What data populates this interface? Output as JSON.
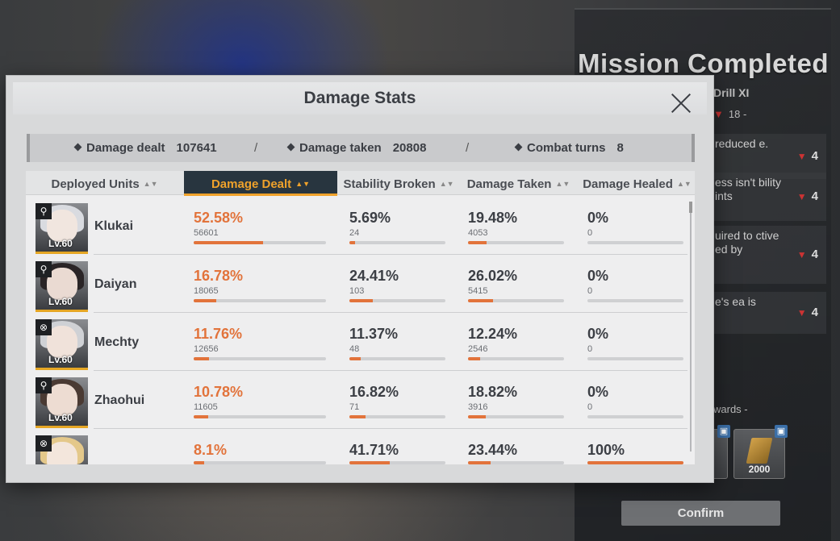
{
  "background": {
    "mission_title": "Mission Completed",
    "mission_subtitle": "Drill XI",
    "difficulty": "18 -",
    "objectives": [
      {
        "text": "reduced e.",
        "stars": "4"
      },
      {
        "text": "ess isn't bility ints",
        "stars": "4"
      },
      {
        "text": "uired to ctive ed by",
        "stars": "4"
      },
      {
        "text": "e's ea is",
        "stars": "4"
      }
    ],
    "rewards_label": "wards -",
    "rewards": [
      {
        "amount": ""
      },
      {
        "amount": "2000"
      }
    ],
    "confirm_label": "Confirm"
  },
  "modal": {
    "title": "Damage Stats",
    "summary": {
      "damage_dealt_label": "Damage dealt",
      "damage_dealt_value": "107641",
      "damage_taken_label": "Damage taken",
      "damage_taken_value": "20808",
      "combat_turns_label": "Combat turns",
      "combat_turns_value": "8",
      "separator": "/"
    },
    "columns": [
      {
        "label": "Deployed Units",
        "active": false
      },
      {
        "label": "Damage Dealt",
        "active": true
      },
      {
        "label": "Stability Broken",
        "active": false
      },
      {
        "label": "Damage Taken",
        "active": false
      },
      {
        "label": "Damage Healed",
        "active": false
      }
    ],
    "level_label": "Lv.60",
    "units": [
      {
        "name": "Klukai",
        "class_icon": "sniper-class-icon",
        "damage_dealt": {
          "pct": "52.58%",
          "raw": "56601",
          "fill": 0.5258
        },
        "stability": {
          "pct": "5.69%",
          "raw": "24",
          "fill": 0.0569
        },
        "taken": {
          "pct": "19.48%",
          "raw": "4053",
          "fill": 0.1948
        },
        "healed": {
          "pct": "0%",
          "raw": "0",
          "fill": 0
        }
      },
      {
        "name": "Daiyan",
        "class_icon": "sniper-class-icon",
        "damage_dealt": {
          "pct": "16.78%",
          "raw": "18065",
          "fill": 0.1678
        },
        "stability": {
          "pct": "24.41%",
          "raw": "103",
          "fill": 0.2441
        },
        "taken": {
          "pct": "26.02%",
          "raw": "5415",
          "fill": 0.2602
        },
        "healed": {
          "pct": "0%",
          "raw": "0",
          "fill": 0
        }
      },
      {
        "name": "Mechty",
        "class_icon": "support-class-icon",
        "damage_dealt": {
          "pct": "11.76%",
          "raw": "12656",
          "fill": 0.1176
        },
        "stability": {
          "pct": "11.37%",
          "raw": "48",
          "fill": 0.1137
        },
        "taken": {
          "pct": "12.24%",
          "raw": "2546",
          "fill": 0.1224
        },
        "healed": {
          "pct": "0%",
          "raw": "0",
          "fill": 0
        }
      },
      {
        "name": "Zhaohui",
        "class_icon": "sniper-class-icon",
        "damage_dealt": {
          "pct": "10.78%",
          "raw": "11605",
          "fill": 0.1078
        },
        "stability": {
          "pct": "16.82%",
          "raw": "71",
          "fill": 0.1682
        },
        "taken": {
          "pct": "18.82%",
          "raw": "3916",
          "fill": 0.1882
        },
        "healed": {
          "pct": "0%",
          "raw": "0",
          "fill": 0
        }
      },
      {
        "name": "",
        "class_icon": "support-class-icon",
        "damage_dealt": {
          "pct": "8.1%",
          "raw": "",
          "fill": 0.081
        },
        "stability": {
          "pct": "41.71%",
          "raw": "",
          "fill": 0.4171
        },
        "taken": {
          "pct": "23.44%",
          "raw": "",
          "fill": 0.2344
        },
        "healed": {
          "pct": "100%",
          "raw": "",
          "fill": 1
        }
      }
    ]
  },
  "colors": {
    "accent_orange": "#e2733b",
    "active_tab_bg": "#28353f",
    "active_tab_text": "#f0a22b"
  }
}
